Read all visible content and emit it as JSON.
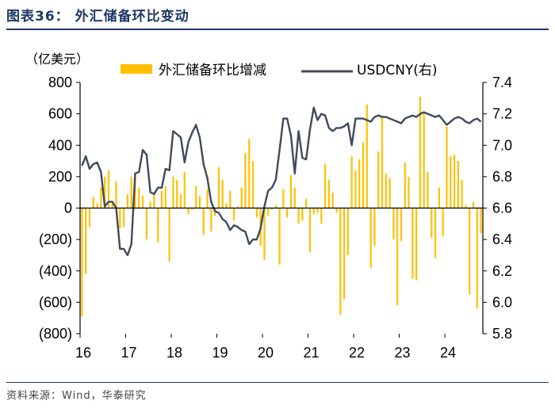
{
  "header": {
    "title": "图表36：  外汇储备环比变动"
  },
  "footer": {
    "source": "资料来源：Wind，华泰研究"
  },
  "chart_data": {
    "type": "bar",
    "left_axis_unit": "（亿美元）",
    "legend": {
      "bar_label": "外汇储备环比增减",
      "line_label": "USDCNY(右)",
      "placement": "top"
    },
    "colors": {
      "bar": "#FFC000",
      "line": "#3F4A5C",
      "axis": "#000000"
    },
    "y_left": {
      "min": -800,
      "max": 800,
      "ticks": [
        {
          "v": 800,
          "label": "800"
        },
        {
          "v": 600,
          "label": "600"
        },
        {
          "v": 400,
          "label": "400"
        },
        {
          "v": 200,
          "label": "200"
        },
        {
          "v": 0,
          "label": "0"
        },
        {
          "v": -200,
          "label": "(200)"
        },
        {
          "v": -400,
          "label": "(400)"
        },
        {
          "v": -600,
          "label": "(600)"
        },
        {
          "v": -800,
          "label": "(800)"
        }
      ]
    },
    "y_right": {
      "min": 5.8,
      "max": 7.4,
      "ticks": [
        {
          "v": 7.4,
          "label": "7.4"
        },
        {
          "v": 7.2,
          "label": "7.2"
        },
        {
          "v": 7.0,
          "label": "7.0"
        },
        {
          "v": 6.8,
          "label": "6.8"
        },
        {
          "v": 6.6,
          "label": "6.6"
        },
        {
          "v": 6.4,
          "label": "6.4"
        },
        {
          "v": 6.2,
          "label": "6.2"
        },
        {
          "v": 6.0,
          "label": "6.0"
        },
        {
          "v": 5.8,
          "label": "5.8"
        }
      ]
    },
    "x_labels": [
      "16",
      "17",
      "18",
      "19",
      "20",
      "21",
      "22",
      "23",
      "24"
    ],
    "start_index_of_each_year": [
      0,
      12,
      24,
      36,
      48,
      60,
      72,
      84,
      96
    ],
    "months_total": 106,
    "series": [
      {
        "name": "外汇储备环比增减",
        "values": [
          -690,
          -420,
          -120,
          70,
          30,
          130,
          200,
          240,
          30,
          170,
          -130,
          -120,
          90,
          200,
          210,
          130,
          80,
          -200,
          40,
          100,
          -220,
          110,
          140,
          -340,
          200,
          180,
          90,
          230,
          -40,
          -10,
          140,
          80,
          -170,
          120,
          -150,
          -50,
          260,
          180,
          30,
          110,
          -80,
          10,
          130,
          350,
          440,
          300,
          -60,
          -240,
          -330,
          -50,
          -10,
          20,
          -360,
          120,
          -60,
          210,
          130,
          -100,
          -80,
          60,
          -280,
          -40,
          -30,
          -100,
          280,
          180,
          100,
          -30,
          -680,
          -580,
          -300,
          330,
          240,
          310,
          420,
          660,
          -380,
          -240,
          360,
          590,
          220,
          190,
          -200,
          -620,
          -210,
          290,
          200,
          -450,
          -460,
          710,
          610,
          230,
          -190,
          -320,
          130,
          -180,
          520,
          330,
          340,
          300,
          180,
          20,
          -550,
          40,
          -640,
          -160
        ]
      },
      {
        "name": "USDCNY(右)",
        "values": [
          6.87,
          6.93,
          6.85,
          6.88,
          6.89,
          6.83,
          6.61,
          6.64,
          6.64,
          6.6,
          6.34,
          6.34,
          6.3,
          6.37,
          6.82,
          6.83,
          6.97,
          6.94,
          6.7,
          6.69,
          6.73,
          6.73,
          6.85,
          6.84,
          7.09,
          7.07,
          7.05,
          6.89,
          7.02,
          7.08,
          7.13,
          7.05,
          6.88,
          6.79,
          6.64,
          6.58,
          6.57,
          6.53,
          6.51,
          6.46,
          6.49,
          6.48,
          6.46,
          6.45,
          6.37,
          6.4,
          6.4,
          6.47,
          6.61,
          6.71,
          6.73,
          6.78,
          6.97,
          7.17,
          7.17,
          7.06,
          6.82,
          7.09,
          6.92,
          6.91,
          7.1,
          7.24,
          7.16,
          7.2,
          7.19,
          7.11,
          7.09,
          7.11,
          7.11,
          7.12,
          7.14,
          7.0,
          7.17,
          7.17,
          7.17,
          7.16,
          7.15,
          7.18,
          7.19,
          7.18,
          7.18,
          7.17,
          7.16,
          7.15,
          7.14,
          7.17,
          7.18,
          7.19,
          7.18,
          7.2,
          7.21,
          7.2,
          7.19,
          7.18,
          7.19,
          7.16,
          7.13,
          7.15,
          7.17,
          7.18,
          7.17,
          7.15,
          7.14,
          7.16,
          7.17,
          7.15
        ]
      }
    ]
  }
}
